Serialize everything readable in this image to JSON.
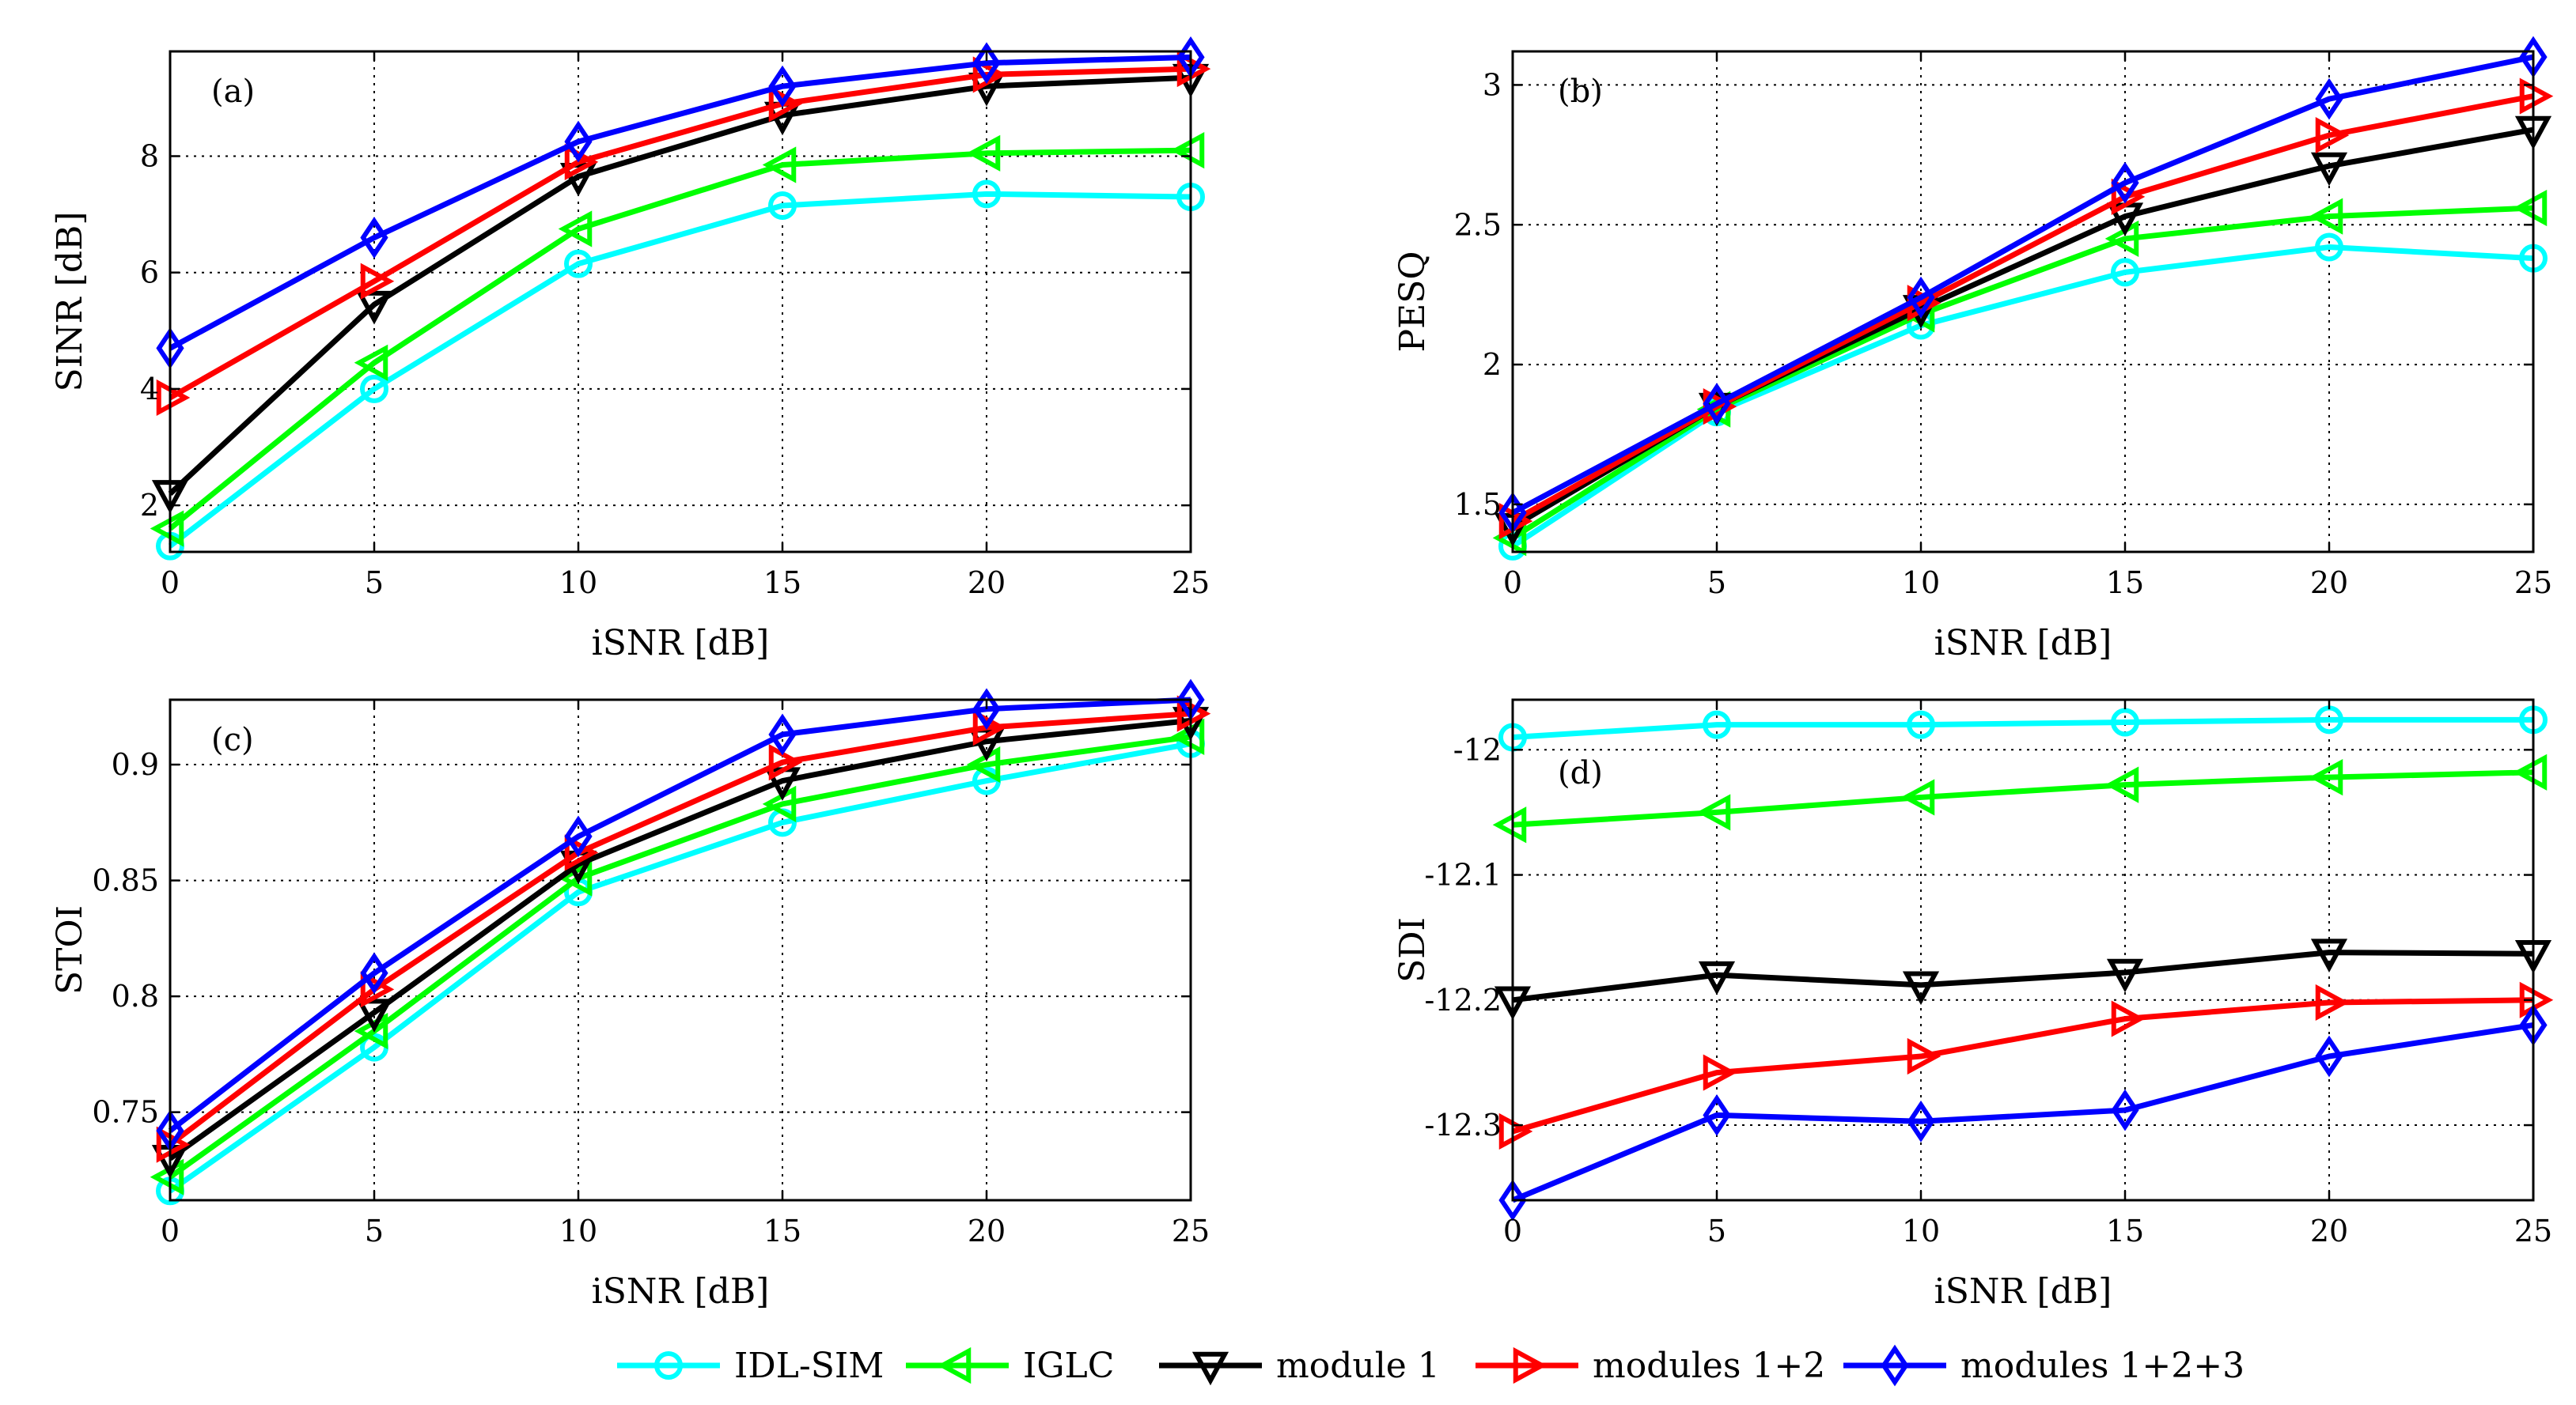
{
  "figure": {
    "legend_position": "bottom-center"
  },
  "series_styles": [
    {
      "name": "IDL-SIM",
      "color": "#00ffff",
      "marker": "circle"
    },
    {
      "name": "IGLC",
      "color": "#00ff00",
      "marker": "triangle-left"
    },
    {
      "name": "module 1",
      "color": "#000000",
      "marker": "triangle-down"
    },
    {
      "name": "modules 1+2",
      "color": "#ff0000",
      "marker": "triangle-right"
    },
    {
      "name": "modules 1+2+3",
      "color": "#0000ff",
      "marker": "diamond"
    }
  ],
  "chart_data": [
    {
      "type": "line",
      "panel_label": "(a)",
      "xlabel": "iSNR [dB]",
      "ylabel": "SINR [dB]",
      "x": [
        0,
        5,
        10,
        15,
        20,
        25
      ],
      "xlim": [
        0,
        25
      ],
      "ylim": [
        1.2,
        9.8
      ],
      "xticks": [
        0,
        5,
        10,
        15,
        20,
        25
      ],
      "yticks": [
        2,
        4,
        6,
        8
      ],
      "grid": true,
      "series": [
        {
          "name": "IDL-SIM",
          "values": [
            1.3,
            4.0,
            6.15,
            7.15,
            7.35,
            7.3
          ]
        },
        {
          "name": "IGLC",
          "values": [
            1.6,
            4.45,
            6.75,
            7.85,
            8.05,
            8.1
          ]
        },
        {
          "name": "module 1",
          "values": [
            2.2,
            5.45,
            7.65,
            8.7,
            9.2,
            9.35
          ]
        },
        {
          "name": "modules 1+2",
          "values": [
            3.85,
            5.85,
            7.9,
            8.9,
            9.4,
            9.5
          ]
        },
        {
          "name": "modules 1+2+3",
          "values": [
            4.7,
            6.6,
            8.25,
            9.2,
            9.6,
            9.7
          ]
        }
      ]
    },
    {
      "type": "line",
      "panel_label": "(b)",
      "xlabel": "iSNR [dB]",
      "ylabel": "PESQ",
      "x": [
        0,
        5,
        10,
        15,
        20,
        25
      ],
      "xlim": [
        0,
        25
      ],
      "ylim": [
        1.33,
        3.12
      ],
      "xticks": [
        0,
        5,
        10,
        15,
        20,
        25
      ],
      "yticks": [
        1.5,
        2,
        2.5,
        3
      ],
      "grid": true,
      "series": [
        {
          "name": "IDL-SIM",
          "values": [
            1.35,
            1.83,
            2.14,
            2.33,
            2.42,
            2.38
          ]
        },
        {
          "name": "IGLC",
          "values": [
            1.38,
            1.84,
            2.18,
            2.45,
            2.53,
            2.56
          ]
        },
        {
          "name": "module 1",
          "values": [
            1.42,
            1.85,
            2.2,
            2.53,
            2.71,
            2.84
          ]
        },
        {
          "name": "modules 1+2",
          "values": [
            1.44,
            1.85,
            2.22,
            2.6,
            2.82,
            2.96
          ]
        },
        {
          "name": "modules 1+2+3",
          "values": [
            1.47,
            1.86,
            2.24,
            2.65,
            2.95,
            3.1
          ]
        }
      ]
    },
    {
      "type": "line",
      "panel_label": "(c)",
      "xlabel": "iSNR [dB]",
      "ylabel": "STOI",
      "x": [
        0,
        5,
        10,
        15,
        20,
        25
      ],
      "xlim": [
        0,
        25
      ],
      "ylim": [
        0.712,
        0.928
      ],
      "xticks": [
        0,
        5,
        10,
        15,
        20,
        25
      ],
      "yticks": [
        0.75,
        0.8,
        0.85,
        0.9
      ],
      "grid": true,
      "series": [
        {
          "name": "IDL-SIM",
          "values": [
            0.716,
            0.778,
            0.845,
            0.875,
            0.893,
            0.909
          ]
        },
        {
          "name": "IGLC",
          "values": [
            0.722,
            0.785,
            0.851,
            0.883,
            0.9,
            0.912
          ]
        },
        {
          "name": "module 1",
          "values": [
            0.73,
            0.793,
            0.857,
            0.893,
            0.91,
            0.919
          ]
        },
        {
          "name": "modules 1+2",
          "values": [
            0.736,
            0.803,
            0.862,
            0.901,
            0.916,
            0.922
          ]
        },
        {
          "name": "modules 1+2+3",
          "values": [
            0.742,
            0.81,
            0.869,
            0.913,
            0.924,
            0.928
          ]
        }
      ]
    },
    {
      "type": "line",
      "panel_label": "(d)",
      "xlabel": "iSNR [dB]",
      "ylabel": "SDI",
      "x": [
        0,
        5,
        10,
        15,
        20,
        25
      ],
      "xlim": [
        0,
        25
      ],
      "ylim": [
        -12.36,
        -11.96
      ],
      "xticks": [
        0,
        5,
        10,
        15,
        20,
        25
      ],
      "yticks": [
        -12,
        -12.1,
        -12.2,
        -12.3
      ],
      "grid": true,
      "series": [
        {
          "name": "IDL-SIM",
          "values": [
            -11.99,
            -11.98,
            -11.98,
            -11.978,
            -11.976,
            -11.976
          ]
        },
        {
          "name": "IGLC",
          "values": [
            -12.06,
            -12.05,
            -12.038,
            -12.028,
            -12.022,
            -12.018
          ]
        },
        {
          "name": "module 1",
          "values": [
            -12.2,
            -12.18,
            -12.188,
            -12.178,
            -12.162,
            -12.163
          ]
        },
        {
          "name": "modules 1+2",
          "values": [
            -12.305,
            -12.258,
            -12.245,
            -12.215,
            -12.202,
            -12.2
          ]
        },
        {
          "name": "modules 1+2+3",
          "values": [
            -12.36,
            -12.292,
            -12.297,
            -12.288,
            -12.245,
            -12.22
          ]
        }
      ]
    }
  ]
}
